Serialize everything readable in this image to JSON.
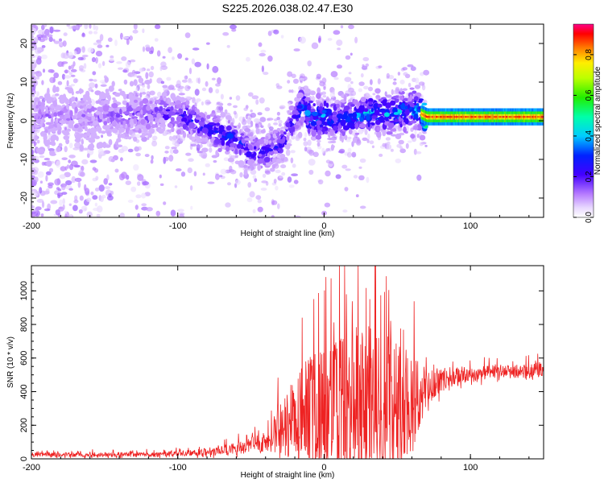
{
  "title": "S225.2026.038.02.47.E30",
  "colors": {
    "snr_line": "#ee2222",
    "frame": "#000000",
    "background": "#ffffff"
  },
  "chart_data": [
    {
      "type": "heatmap",
      "name": "spectrogram",
      "xlabel": "Height of straight line (km)",
      "ylabel": "Frequency (Hz)",
      "xlim": [
        -200,
        150
      ],
      "ylim": [
        -25,
        25
      ],
      "xticks": [
        -200,
        -100,
        0,
        100
      ],
      "xtick_labels": [
        "-200",
        "-100",
        "0",
        "100"
      ],
      "yticks": [
        -20,
        -10,
        0,
        10,
        20
      ],
      "ytick_labels": [
        "-20",
        "-10",
        "0",
        "10",
        "20"
      ],
      "colorbar": {
        "label": "Normalized spectral amplitude",
        "range": [
          0,
          0.95
        ],
        "ticks": [
          0.0,
          0.2,
          0.4,
          0.6,
          0.8
        ],
        "tick_labels": [
          "0.0",
          "0.2",
          "0.4",
          "0.6",
          "0.8"
        ]
      },
      "signal_trace": {
        "description_points_km": [
          -200,
          -150,
          -120,
          -100,
          -80,
          -60,
          -50,
          -40,
          -30,
          -20,
          -15,
          -10,
          0,
          10,
          20,
          30,
          40,
          50,
          60,
          65,
          70,
          90,
          110,
          130,
          150
        ],
        "center_frequency_hz": [
          1,
          1,
          2,
          2,
          -2,
          -5,
          -8,
          -8,
          -6,
          0,
          4,
          1,
          1,
          0,
          1,
          2,
          2,
          2,
          3,
          2,
          1,
          1,
          1,
          1,
          1
        ],
        "peak_amplitude": [
          0.15,
          0.15,
          0.2,
          0.3,
          0.3,
          0.35,
          0.3,
          0.3,
          0.3,
          0.3,
          0.4,
          0.45,
          0.45,
          0.35,
          0.4,
          0.45,
          0.45,
          0.45,
          0.4,
          0.55,
          0.92,
          0.92,
          0.92,
          0.92,
          0.92
        ]
      }
    },
    {
      "type": "line",
      "name": "snr",
      "xlabel": "Height of straight line (km)",
      "ylabel": "SNR (10 * v/v)",
      "xlim": [
        -200,
        150
      ],
      "ylim": [
        0,
        1150
      ],
      "xticks": [
        -200,
        -100,
        0,
        100
      ],
      "xtick_labels": [
        "-200",
        "-100",
        "0",
        "100"
      ],
      "yticks": [
        0,
        200,
        400,
        600,
        800,
        1000
      ],
      "ytick_labels": [
        "0",
        "200",
        "400",
        "600",
        "800",
        "1000"
      ],
      "envelope": {
        "x_km": [
          -200,
          -150,
          -120,
          -100,
          -80,
          -60,
          -50,
          -40,
          -30,
          -20,
          -10,
          0,
          10,
          20,
          25,
          30,
          40,
          50,
          60,
          65,
          70,
          80,
          90,
          100,
          110,
          120,
          130,
          140,
          150
        ],
        "baseline": [
          25,
          25,
          25,
          30,
          40,
          60,
          80,
          100,
          180,
          250,
          300,
          300,
          300,
          300,
          300,
          320,
          340,
          350,
          350,
          380,
          420,
          470,
          490,
          500,
          510,
          520,
          520,
          520,
          540
        ],
        "spread": [
          20,
          25,
          25,
          30,
          40,
          60,
          80,
          100,
          250,
          450,
          550,
          600,
          700,
          800,
          850,
          800,
          750,
          650,
          550,
          450,
          150,
          120,
          100,
          80,
          70,
          70,
          70,
          70,
          80
        ]
      }
    }
  ]
}
